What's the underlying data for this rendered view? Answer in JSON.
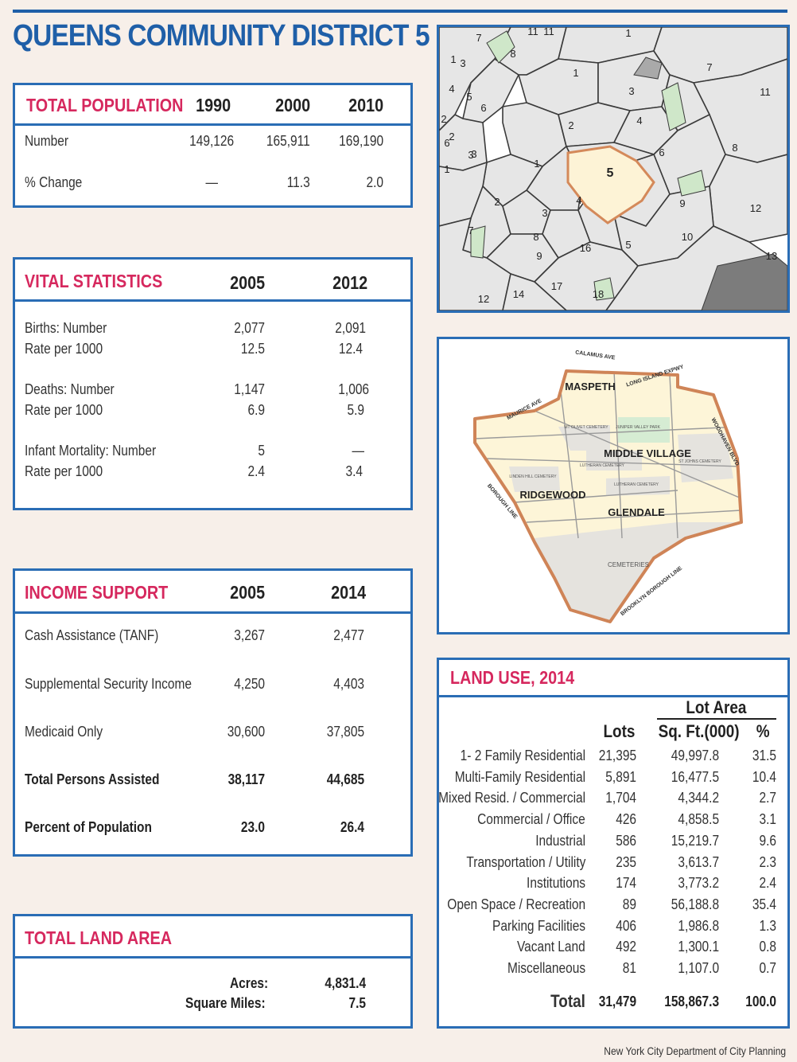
{
  "title": "QUEENS COMMUNITY DISTRICT 5",
  "colors": {
    "brand_blue": "#1f5fa8",
    "header_pink": "#d6285e",
    "district_fill": "#fdf3d6",
    "district_outline": "#d4895a",
    "park_green": "#d6ecd3"
  },
  "population": {
    "heading": "TOTAL POPULATION",
    "years": [
      "1990",
      "2000",
      "2010"
    ],
    "rows": [
      {
        "label": "Number",
        "values": [
          "149,126",
          "165,911",
          "169,190"
        ]
      },
      {
        "label": "% Change",
        "values": [
          "—",
          "11.3",
          "2.0"
        ]
      }
    ]
  },
  "vital": {
    "heading": "VITAL STATISTICS",
    "years": [
      "2005",
      "2012"
    ],
    "rows": [
      {
        "label": "Births: Number",
        "values": [
          "2,077",
          "2,091"
        ]
      },
      {
        "label": "Rate per 1000",
        "values": [
          "12.5",
          "12.4"
        ]
      },
      {
        "label": "Deaths: Number",
        "values": [
          "1,147",
          "1,006"
        ]
      },
      {
        "label": "Rate per 1000",
        "values": [
          "6.9",
          "5.9"
        ]
      },
      {
        "label": "Infant Mortality: Number",
        "values": [
          "5",
          "—"
        ]
      },
      {
        "label": "Rate per 1000",
        "values": [
          "2.4",
          "3.4"
        ]
      }
    ]
  },
  "income": {
    "heading": "INCOME SUPPORT",
    "years": [
      "2005",
      "2014"
    ],
    "rows": [
      {
        "label": "Cash Assistance (TANF)",
        "values": [
          "3,267",
          "2,477"
        ]
      },
      {
        "label": "Supplemental Security Income",
        "values": [
          "4,250",
          "4,403"
        ]
      },
      {
        "label": "Medicaid Only",
        "values": [
          "30,600",
          "37,805"
        ]
      },
      {
        "label": "Total Persons Assisted",
        "values": [
          "38,117",
          "44,685"
        ]
      },
      {
        "label": "Percent of Population",
        "values": [
          "23.0",
          "26.4"
        ]
      }
    ]
  },
  "land_area": {
    "heading": "TOTAL LAND AREA",
    "rows": [
      {
        "label": "Acres:",
        "value": "4,831.4"
      },
      {
        "label": "Square Miles:",
        "value": "7.5"
      }
    ]
  },
  "land_use": {
    "heading": "LAND USE, 2014",
    "group_header": "Lot Area",
    "col_lots": "Lots",
    "col_sqft": "Sq. Ft.(000)",
    "col_pct": "%",
    "rows": [
      {
        "label": "1- 2 Family Residential",
        "lots": "21,395",
        "sqft": "49,997.8",
        "pct": "31.5"
      },
      {
        "label": "Multi-Family Residential",
        "lots": "5,891",
        "sqft": "16,477.5",
        "pct": "10.4"
      },
      {
        "label": "Mixed Resid. / Commercial",
        "lots": "1,704",
        "sqft": "4,344.2",
        "pct": "2.7"
      },
      {
        "label": "Commercial / Office",
        "lots": "426",
        "sqft": "4,858.5",
        "pct": "3.1"
      },
      {
        "label": "Industrial",
        "lots": "586",
        "sqft": "15,219.7",
        "pct": "9.6"
      },
      {
        "label": "Transportation / Utility",
        "lots": "235",
        "sqft": "3,613.7",
        "pct": "2.3"
      },
      {
        "label": "Institutions",
        "lots": "174",
        "sqft": "3,773.2",
        "pct": "2.4"
      },
      {
        "label": "Open Space / Recreation",
        "lots": "89",
        "sqft": "56,188.8",
        "pct": "35.4"
      },
      {
        "label": "Parking Facilities",
        "lots": "406",
        "sqft": "1,986.8",
        "pct": "1.3"
      },
      {
        "label": "Vacant Land",
        "lots": "492",
        "sqft": "1,300.1",
        "pct": "0.8"
      },
      {
        "label": "Miscellaneous",
        "lots": "81",
        "sqft": "1,107.0",
        "pct": "0.7"
      }
    ],
    "total": {
      "label": "Total",
      "lots": "31,479",
      "sqft": "158,867.3",
      "pct": "100.0"
    }
  },
  "city_map": {
    "labels": [
      "7",
      "8",
      "11",
      "11",
      "1",
      "4",
      "5",
      "6",
      "1",
      "3",
      "2",
      "4",
      "3",
      "6",
      "1",
      "5",
      "2",
      "3",
      "4",
      "9",
      "8",
      "9",
      "16",
      "5",
      "17",
      "18",
      "12",
      "14",
      "7",
      "6",
      "7",
      "11",
      "8",
      "12",
      "10",
      "13",
      "2",
      "3",
      "1",
      "2",
      "3",
      "1"
    ]
  },
  "district_map": {
    "neighborhoods": [
      "MASPETH",
      "MIDDLE VILLAGE",
      "RIDGEWOOD",
      "GLENDALE"
    ],
    "streets": [
      "CALAMUS AVE",
      "LONG ISLAND EXPWY",
      "MAURICE AVE",
      "WOODHAVEN BLVD",
      "BOROUGH LINE",
      "BROOKLYN BOROUGH LINE"
    ],
    "places": [
      "MT OLIVET CEMETERY",
      "JUNIPER VALLEY PARK",
      "LUTHERAN CEMETERY",
      "LUTHERAN CEMETERY",
      "ST JOHNS CEMETERY",
      "LINDEN HILL CEMETERY",
      "CEMETERIES"
    ]
  },
  "credit": "New York City Department of City Planning"
}
